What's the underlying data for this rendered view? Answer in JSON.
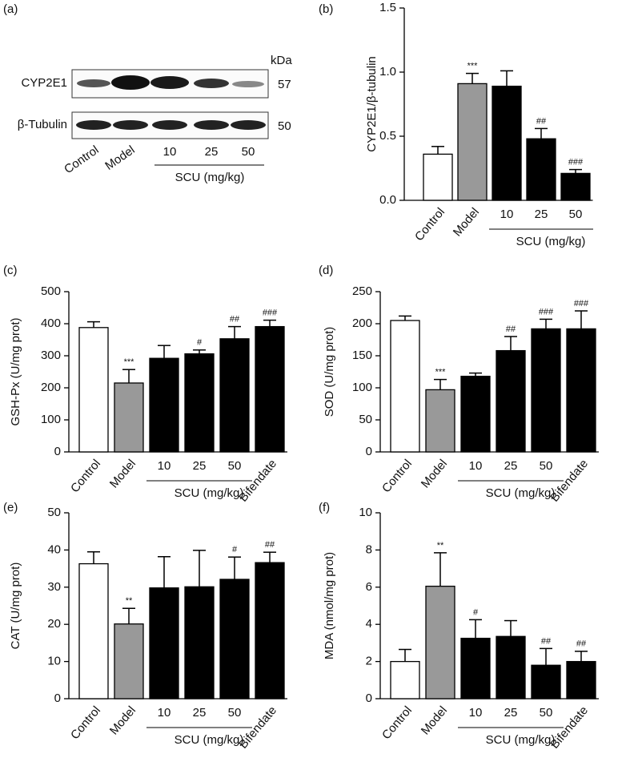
{
  "blot": {
    "panel_label": "(a)",
    "unit_header": "kDa",
    "rows": [
      {
        "label": "CYP2E1",
        "kda": "57"
      },
      {
        "label": "β-Tubulin",
        "kda": "50"
      }
    ],
    "lanes": [
      "Control",
      "Model",
      "10",
      "25",
      "50"
    ],
    "group_label": "SCU (mg/kg)"
  },
  "chart_data": [
    {
      "type": "bar",
      "panel_label": "(b)",
      "y_label": "CYP2E1/β-tubulin",
      "group_label": "SCU (mg/kg)",
      "categories": [
        "Control",
        "Model",
        "10",
        "25",
        "50"
      ],
      "values": [
        0.36,
        0.91,
        0.89,
        0.48,
        0.21
      ],
      "errors": [
        0.06,
        0.08,
        0.12,
        0.08,
        0.03
      ],
      "annotations": [
        null,
        "***",
        null,
        "##",
        "###"
      ],
      "colors": [
        "#ffffff",
        "#999999",
        "#000000",
        "#000000",
        "#000000"
      ],
      "ylim": [
        0,
        1.5
      ],
      "yticks": [
        {
          "value": 0,
          "label": "0.0"
        },
        0.5,
        {
          "value": 1,
          "label": "1.0"
        },
        1.5
      ]
    },
    {
      "type": "bar",
      "panel_label": "(c)",
      "y_label": "GSH-Px (U/mg prot)",
      "group_label": "SCU (mg/kg)",
      "categories": [
        "Control",
        "Model",
        "10",
        "25",
        "50",
        "Bifendate"
      ],
      "values": [
        388,
        215,
        292,
        306,
        353,
        391
      ],
      "errors": [
        18,
        42,
        40,
        12,
        38,
        20
      ],
      "annotations": [
        null,
        "***",
        null,
        "#",
        "##",
        "###"
      ],
      "colors": [
        "#ffffff",
        "#999999",
        "#000000",
        "#000000",
        "#000000",
        "#000000"
      ],
      "ylim": [
        0,
        500
      ],
      "yticks": [
        0,
        100,
        200,
        300,
        400,
        500
      ]
    },
    {
      "type": "bar",
      "panel_label": "(d)",
      "y_label": "SOD (U/mg prot)",
      "group_label": "SCU (mg/kg)",
      "categories": [
        "Control",
        "Model",
        "10",
        "25",
        "50",
        "Bifendate"
      ],
      "values": [
        205,
        97,
        118,
        158,
        192,
        192
      ],
      "errors": [
        7,
        16,
        5,
        22,
        15,
        28
      ],
      "annotations": [
        null,
        "***",
        null,
        "##",
        "###",
        "###"
      ],
      "colors": [
        "#ffffff",
        "#999999",
        "#000000",
        "#000000",
        "#000000",
        "#000000"
      ],
      "ylim": [
        0,
        250
      ],
      "yticks": [
        0,
        50,
        100,
        150,
        200,
        250
      ]
    },
    {
      "type": "bar",
      "panel_label": "(e)",
      "y_label": "CAT (U/mg prot)",
      "group_label": "SCU (mg/kg)",
      "categories": [
        "Control",
        "Model",
        "10",
        "25",
        "50",
        "Bifendate"
      ],
      "values": [
        36.3,
        20.1,
        29.8,
        30.1,
        32.1,
        36.6
      ],
      "errors": [
        3.2,
        4.2,
        8.4,
        9.8,
        6,
        2.8
      ],
      "annotations": [
        null,
        "**",
        null,
        null,
        "#",
        "##"
      ],
      "colors": [
        "#ffffff",
        "#999999",
        "#000000",
        "#000000",
        "#000000",
        "#000000"
      ],
      "ylim": [
        0,
        50
      ],
      "yticks": [
        0,
        10,
        20,
        30,
        40,
        50
      ]
    },
    {
      "type": "bar",
      "panel_label": "(f)",
      "y_label": "MDA (nmol/mg prot)",
      "group_label": "SCU (mg/kg)",
      "categories": [
        "Control",
        "Model",
        "10",
        "25",
        "50",
        "Bifendate"
      ],
      "values": [
        2.0,
        6.05,
        3.25,
        3.35,
        1.8,
        2.0
      ],
      "errors": [
        0.65,
        1.8,
        1.0,
        0.85,
        0.9,
        0.55
      ],
      "annotations": [
        null,
        "**",
        "#",
        null,
        "##",
        "##"
      ],
      "colors": [
        "#ffffff",
        "#999999",
        "#000000",
        "#000000",
        "#000000",
        "#000000"
      ],
      "ylim": [
        0,
        10
      ],
      "yticks": [
        0,
        2,
        4,
        6,
        8,
        10
      ]
    }
  ]
}
